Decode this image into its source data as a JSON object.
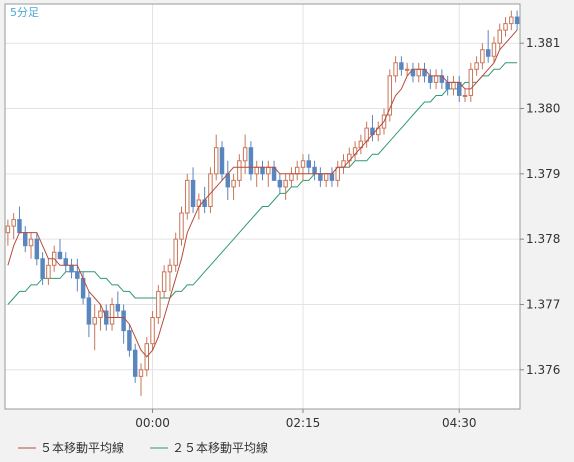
{
  "colors": {
    "page_bg": "#f2f2f2",
    "plot_bg": "#ffffff",
    "grid": "#e3e3e3",
    "axis": "#888888",
    "up_candle": "#ffffff",
    "up_border": "#c8765a",
    "down_candle": "#5a86c0",
    "down_border": "#5a86c0",
    "ma5": "#b84a3a",
    "ma25": "#2f9a70",
    "timeframe_text": "#4aa8d8",
    "tick_text": "#333333"
  },
  "chart_data": {
    "type": "candlestick",
    "title": "5分足",
    "ylim": [
      1.3754,
      1.3816
    ],
    "y_ticks": [
      1.376,
      1.377,
      1.378,
      1.379,
      1.38,
      1.381
    ],
    "y_tick_labels": [
      "1.376",
      "1.377",
      "1.378",
      "1.379",
      "1.380",
      "1.381"
    ],
    "x_ticks": [
      {
        "index": 25,
        "label": "00:00"
      },
      {
        "index": 51,
        "label": "02:15"
      },
      {
        "index": 78,
        "label": "04:30"
      }
    ],
    "grid": true,
    "legend_position": "bottom",
    "legend": [
      {
        "name": "５本移動平均線",
        "color": "#b84a3a"
      },
      {
        "name": "２５本移動平均線",
        "color": "#2f9a70"
      }
    ],
    "candles": [
      [
        1.3781,
        1.3783,
        1.3779,
        1.3782
      ],
      [
        1.3782,
        1.3784,
        1.378,
        1.3783
      ],
      [
        1.3783,
        1.3785,
        1.3781,
        1.3781
      ],
      [
        1.3781,
        1.3782,
        1.3778,
        1.3779
      ],
      [
        1.3779,
        1.3781,
        1.3777,
        1.378
      ],
      [
        1.378,
        1.3781,
        1.3776,
        1.3777
      ],
      [
        1.3777,
        1.3778,
        1.3773,
        1.3774
      ],
      [
        1.3774,
        1.3777,
        1.3773,
        1.3776
      ],
      [
        1.3776,
        1.3779,
        1.3775,
        1.3778
      ],
      [
        1.3778,
        1.378,
        1.3777,
        1.3777
      ],
      [
        1.3777,
        1.3778,
        1.3775,
        1.3776
      ],
      [
        1.3776,
        1.3777,
        1.3774,
        1.3775
      ],
      [
        1.3775,
        1.3777,
        1.3772,
        1.3774
      ],
      [
        1.3774,
        1.3775,
        1.377,
        1.3771
      ],
      [
        1.3771,
        1.3772,
        1.3765,
        1.3767
      ],
      [
        1.3767,
        1.377,
        1.3763,
        1.3768
      ],
      [
        1.3768,
        1.377,
        1.3766,
        1.3769
      ],
      [
        1.3769,
        1.377,
        1.3766,
        1.3767
      ],
      [
        1.3767,
        1.3771,
        1.3766,
        1.377
      ],
      [
        1.377,
        1.3772,
        1.3768,
        1.3769
      ],
      [
        1.3769,
        1.377,
        1.3764,
        1.3766
      ],
      [
        1.3766,
        1.3767,
        1.3762,
        1.3763
      ],
      [
        1.3763,
        1.3764,
        1.3758,
        1.3759
      ],
      [
        1.3759,
        1.3761,
        1.3756,
        1.376
      ],
      [
        1.376,
        1.3765,
        1.3759,
        1.3764
      ],
      [
        1.3764,
        1.3769,
        1.3763,
        1.3768
      ],
      [
        1.3768,
        1.3773,
        1.3767,
        1.3772
      ],
      [
        1.3772,
        1.3776,
        1.3771,
        1.3775
      ],
      [
        1.3775,
        1.3777,
        1.3772,
        1.3776
      ],
      [
        1.3776,
        1.3781,
        1.3775,
        1.378
      ],
      [
        1.378,
        1.3785,
        1.3779,
        1.3784
      ],
      [
        1.3784,
        1.379,
        1.3783,
        1.3789
      ],
      [
        1.3789,
        1.3791,
        1.3784,
        1.3785
      ],
      [
        1.3785,
        1.3787,
        1.3783,
        1.3786
      ],
      [
        1.3786,
        1.3788,
        1.3784,
        1.3785
      ],
      [
        1.3785,
        1.3791,
        1.3784,
        1.379
      ],
      [
        1.379,
        1.3796,
        1.3789,
        1.3794
      ],
      [
        1.3794,
        1.3795,
        1.3789,
        1.379
      ],
      [
        1.379,
        1.3792,
        1.3786,
        1.3788
      ],
      [
        1.3788,
        1.379,
        1.3786,
        1.3789
      ],
      [
        1.3789,
        1.3793,
        1.3788,
        1.3792
      ],
      [
        1.3792,
        1.3796,
        1.379,
        1.3794
      ],
      [
        1.3794,
        1.3795,
        1.3789,
        1.379
      ],
      [
        1.379,
        1.3792,
        1.3788,
        1.3791
      ],
      [
        1.3791,
        1.3792,
        1.3789,
        1.379
      ],
      [
        1.379,
        1.3792,
        1.3788,
        1.3791
      ],
      [
        1.3791,
        1.3792,
        1.3789,
        1.3789
      ],
      [
        1.3789,
        1.379,
        1.3787,
        1.3788
      ],
      [
        1.3788,
        1.379,
        1.3786,
        1.3789
      ],
      [
        1.3789,
        1.3791,
        1.3788,
        1.379
      ],
      [
        1.379,
        1.3792,
        1.3789,
        1.3791
      ],
      [
        1.3791,
        1.3793,
        1.3789,
        1.3792
      ],
      [
        1.3792,
        1.3793,
        1.379,
        1.3791
      ],
      [
        1.3791,
        1.3792,
        1.3789,
        1.379
      ],
      [
        1.379,
        1.3791,
        1.3788,
        1.3789
      ],
      [
        1.3789,
        1.379,
        1.3788,
        1.379
      ],
      [
        1.379,
        1.3791,
        1.3788,
        1.3789
      ],
      [
        1.3789,
        1.3792,
        1.3788,
        1.3791
      ],
      [
        1.3791,
        1.3793,
        1.379,
        1.3792
      ],
      [
        1.3792,
        1.3794,
        1.3791,
        1.3793
      ],
      [
        1.3793,
        1.3795,
        1.3792,
        1.3794
      ],
      [
        1.3794,
        1.3796,
        1.3793,
        1.3795
      ],
      [
        1.3795,
        1.3798,
        1.3794,
        1.3797
      ],
      [
        1.3797,
        1.3799,
        1.3795,
        1.3796
      ],
      [
        1.3796,
        1.3798,
        1.3795,
        1.3797
      ],
      [
        1.3797,
        1.38,
        1.3796,
        1.3799
      ],
      [
        1.3799,
        1.3806,
        1.3798,
        1.3805
      ],
      [
        1.3805,
        1.3808,
        1.3804,
        1.3807
      ],
      [
        1.3807,
        1.3808,
        1.3805,
        1.3806
      ],
      [
        1.3806,
        1.3807,
        1.3805,
        1.3806
      ],
      [
        1.3806,
        1.3807,
        1.3804,
        1.3805
      ],
      [
        1.3805,
        1.3807,
        1.3804,
        1.3806
      ],
      [
        1.3806,
        1.3807,
        1.3804,
        1.3805
      ],
      [
        1.3805,
        1.3806,
        1.3803,
        1.3804
      ],
      [
        1.3804,
        1.3806,
        1.3803,
        1.3805
      ],
      [
        1.3805,
        1.3806,
        1.3803,
        1.3804
      ],
      [
        1.3804,
        1.3805,
        1.3802,
        1.3803
      ],
      [
        1.3803,
        1.3805,
        1.3802,
        1.3804
      ],
      [
        1.3804,
        1.3805,
        1.3801,
        1.3802
      ],
      [
        1.3802,
        1.3803,
        1.3801,
        1.3802
      ],
      [
        1.3802,
        1.3807,
        1.3801,
        1.3806
      ],
      [
        1.3806,
        1.3808,
        1.3805,
        1.3807
      ],
      [
        1.3807,
        1.381,
        1.3806,
        1.3809
      ],
      [
        1.3809,
        1.3812,
        1.3807,
        1.3808
      ],
      [
        1.3808,
        1.3811,
        1.3807,
        1.381
      ],
      [
        1.381,
        1.3813,
        1.3809,
        1.3812
      ],
      [
        1.3812,
        1.3814,
        1.3811,
        1.3813
      ],
      [
        1.3813,
        1.3815,
        1.3812,
        1.3814
      ],
      [
        1.3814,
        1.3815,
        1.3812,
        1.3813
      ]
    ],
    "ma5": [
      1.3776,
      1.3779,
      1.3781,
      1.3781,
      1.3781,
      1.3781,
      1.3779,
      1.3777,
      1.3777,
      1.3776,
      1.3776,
      1.3776,
      1.3776,
      1.3774,
      1.3772,
      1.3771,
      1.377,
      1.3768,
      1.3768,
      1.3768,
      1.3768,
      1.3767,
      1.3765,
      1.3763,
      1.3762,
      1.3763,
      1.3765,
      1.3768,
      1.3771,
      1.3774,
      1.3777,
      1.3781,
      1.3783,
      1.3785,
      1.3786,
      1.3787,
      1.3788,
      1.3789,
      1.379,
      1.3791,
      1.3791,
      1.3791,
      1.3791,
      1.3791,
      1.3791,
      1.3791,
      1.3791,
      1.379,
      1.379,
      1.379,
      1.379,
      1.379,
      1.379,
      1.379,
      1.379,
      1.379,
      1.379,
      1.3791,
      1.3791,
      1.3792,
      1.3793,
      1.3794,
      1.3795,
      1.3796,
      1.3797,
      1.3798,
      1.38,
      1.3802,
      1.3803,
      1.3805,
      1.3806,
      1.3806,
      1.3806,
      1.3805,
      1.3805,
      1.3805,
      1.3804,
      1.3804,
      1.3804,
      1.3803,
      1.3803,
      1.3804,
      1.3805,
      1.3806,
      1.3807,
      1.3809,
      1.381,
      1.3811,
      1.3812
    ],
    "ma25": [
      1.377,
      1.3771,
      1.3772,
      1.3772,
      1.3773,
      1.3773,
      1.3774,
      1.3774,
      1.3774,
      1.3774,
      1.3775,
      1.3775,
      1.3775,
      1.3775,
      1.3775,
      1.3775,
      1.3774,
      1.3774,
      1.3773,
      1.3773,
      1.3772,
      1.3772,
      1.3771,
      1.3771,
      1.3771,
      1.3771,
      1.3771,
      1.3771,
      1.3771,
      1.3772,
      1.3772,
      1.3773,
      1.3773,
      1.3774,
      1.3775,
      1.3776,
      1.3777,
      1.3778,
      1.3779,
      1.378,
      1.3781,
      1.3782,
      1.3783,
      1.3784,
      1.3785,
      1.3785,
      1.3786,
      1.3787,
      1.3787,
      1.3788,
      1.3788,
      1.3789,
      1.3789,
      1.379,
      1.379,
      1.379,
      1.379,
      1.3791,
      1.3791,
      1.3791,
      1.3792,
      1.3792,
      1.3792,
      1.3793,
      1.3793,
      1.3794,
      1.3795,
      1.3796,
      1.3797,
      1.3798,
      1.3799,
      1.38,
      1.3801,
      1.3801,
      1.3802,
      1.3802,
      1.3803,
      1.3803,
      1.3803,
      1.3804,
      1.3804,
      1.3804,
      1.3805,
      1.3805,
      1.3806,
      1.3806,
      1.3807,
      1.3807,
      1.3807
    ]
  }
}
